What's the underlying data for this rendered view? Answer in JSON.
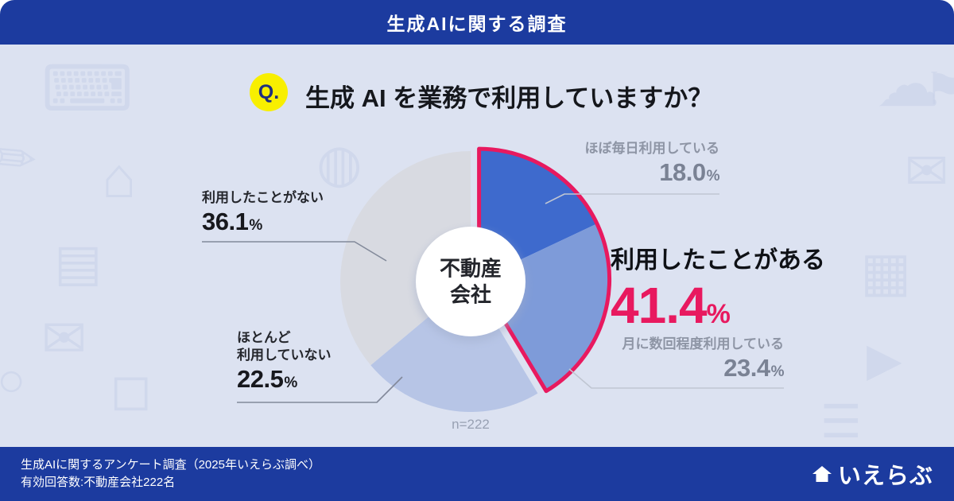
{
  "header": {
    "title": "生成AIに関する調査"
  },
  "question": {
    "badge": "Q.",
    "text": "生成 AI を業務で利用していますか？"
  },
  "theme": {
    "primary_blue": "#1c3b9f",
    "body_background": "#dce2f1",
    "accent_pink": "#e8195f",
    "badge_yellow": "#f8ef00"
  },
  "chart_data": {
    "type": "pie",
    "donut": true,
    "title": "生成 AI を業務で利用していますか？",
    "center_label": "不動産\n会社",
    "sample_note": "n=222",
    "percent_sign": "%",
    "start_angle_deg": 0,
    "direction": "clockwise",
    "segments": [
      {
        "label": "ほぼ毎日利用している",
        "value": 18.0,
        "display": "18.0",
        "color": "#3e6acd",
        "highlighted": true
      },
      {
        "label": "月に数回程度利用している",
        "value": 23.4,
        "display": "23.4",
        "color": "#7e9bd9",
        "highlighted": true
      },
      {
        "label": "ほとんど利用していない",
        "display_label": "ほとんど\n利用していない",
        "value": 22.5,
        "display": "22.5",
        "color": "#b7c5e6",
        "highlighted": false
      },
      {
        "label": "利用したことがない",
        "value": 36.1,
        "display": "36.1",
        "color": "#d8dae1",
        "highlighted": false
      }
    ],
    "highlight_group": {
      "label": "利用したことがある",
      "value": 41.4,
      "display": "41.4",
      "color": "#e8195f"
    }
  },
  "background": {
    "icons": [
      {
        "name": "keyboard-icon",
        "glyph": "⌨"
      },
      {
        "name": "pencil-icon",
        "glyph": "✎"
      },
      {
        "name": "house-icon",
        "glyph": "⌂"
      },
      {
        "name": "document-icon",
        "glyph": "▤"
      },
      {
        "name": "envelope-icon",
        "glyph": "✉"
      },
      {
        "name": "box-icon",
        "glyph": "◻"
      },
      {
        "name": "cloud-icon",
        "glyph": "☁"
      },
      {
        "name": "flag-icon",
        "glyph": "⚑"
      },
      {
        "name": "mail-icon",
        "glyph": "✉"
      },
      {
        "name": "calendar-icon",
        "glyph": "▦"
      },
      {
        "name": "play-icon",
        "glyph": "▶"
      },
      {
        "name": "menu-icon",
        "glyph": "☰"
      },
      {
        "name": "speech-icon",
        "glyph": "◍"
      },
      {
        "name": "circle-icon",
        "glyph": "○"
      }
    ]
  },
  "footer": {
    "line1": "生成AIに関するアンケート調査（2025年いえらぶ調べ）",
    "line2": "有効回答数:不動産会社222名",
    "logo": "いえらぶ"
  }
}
